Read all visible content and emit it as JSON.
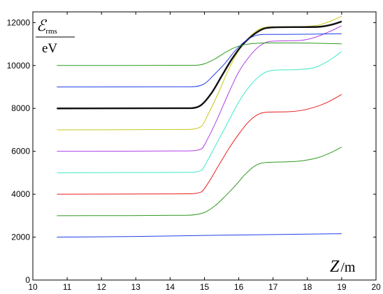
{
  "chart_data": {
    "type": "line",
    "title": "",
    "ylabel_symbol": "ℰ",
    "ylabel_subscript": "rms",
    "ylabel_unit": "eV",
    "xlabel_symbol": "Z",
    "xlabel_unit": "/m",
    "xlim": [
      10,
      20
    ],
    "ylim": [
      0,
      12500
    ],
    "xticks": [
      "10",
      "11",
      "12",
      "13",
      "14",
      "15",
      "16",
      "17",
      "18",
      "19",
      "20"
    ],
    "yticks": [
      "0",
      "2000",
      "4000",
      "6000",
      "8000",
      "10000",
      "12000"
    ],
    "grid": false,
    "series": [
      {
        "color": "#1f3fe8",
        "width": 1,
        "x": [
          10.7,
          13,
          15,
          17,
          19
        ],
        "y": [
          2000,
          2030,
          2080,
          2120,
          2160
        ]
      },
      {
        "color": "#2f9a1f",
        "width": 1,
        "x": [
          10.7,
          14.5,
          15.0,
          15.3,
          15.6,
          15.9,
          16.2,
          16.5,
          16.8,
          17.2,
          17.8,
          18.3,
          18.7,
          19.0
        ],
        "y": [
          3000,
          3020,
          3150,
          3450,
          3900,
          4400,
          4950,
          5350,
          5480,
          5500,
          5550,
          5700,
          5950,
          6200
        ]
      },
      {
        "color": "#e81c1c",
        "width": 1,
        "x": [
          10.7,
          14.5,
          14.9,
          15.1,
          15.4,
          15.7,
          16.0,
          16.3,
          16.6,
          16.9,
          17.4,
          17.8,
          18.2,
          18.6,
          19.0
        ],
        "y": [
          4000,
          4020,
          4100,
          4500,
          5300,
          6100,
          6800,
          7400,
          7750,
          7830,
          7840,
          7900,
          8050,
          8300,
          8650
        ]
      },
      {
        "color": "#3fe8c8",
        "width": 1,
        "x": [
          10.7,
          14.5,
          14.9,
          15.1,
          15.4,
          15.7,
          16.0,
          16.3,
          16.6,
          16.9,
          17.4,
          17.8,
          18.2,
          18.6,
          19.0
        ],
        "y": [
          5000,
          5020,
          5100,
          5600,
          6500,
          7400,
          8300,
          9000,
          9500,
          9750,
          9800,
          9820,
          9900,
          10200,
          10650
        ]
      },
      {
        "color": "#b040e8",
        "width": 1,
        "x": [
          10.7,
          14.5,
          14.9,
          15.1,
          15.4,
          15.7,
          16.0,
          16.3,
          16.6,
          16.9,
          17.4,
          17.8,
          18.2,
          18.6,
          19.0
        ],
        "y": [
          6000,
          6020,
          6100,
          6600,
          7600,
          8700,
          9700,
          10400,
          10900,
          11120,
          11150,
          11170,
          11300,
          11550,
          11850
        ]
      },
      {
        "color": "#c8c81a",
        "width": 1,
        "x": [
          10.7,
          14.5,
          14.9,
          15.1,
          15.4,
          15.7,
          16.0,
          16.3,
          16.6,
          16.9,
          17.5,
          18.2,
          18.8,
          19.0
        ],
        "y": [
          7000,
          7020,
          7150,
          7700,
          8700,
          9800,
          10700,
          11300,
          11700,
          11800,
          11810,
          11850,
          12150,
          12300
        ]
      },
      {
        "color": "#111111",
        "width": 2.4,
        "x": [
          10.7,
          14.6,
          14.9,
          15.2,
          15.5,
          15.8,
          16.1,
          16.4,
          16.7,
          17.0,
          17.6,
          18.3,
          18.7,
          19.0
        ],
        "y": [
          8000,
          8010,
          8150,
          8700,
          9500,
          10300,
          10950,
          11400,
          11700,
          11780,
          11790,
          11800,
          11900,
          12050
        ]
      },
      {
        "color": "#1f3fe8",
        "width": 1,
        "x": [
          10.7,
          14.6,
          15.0,
          15.3,
          15.6,
          15.9,
          16.2,
          16.5,
          16.8,
          17.2,
          18.0,
          19.0
        ],
        "y": [
          9000,
          9010,
          9150,
          9600,
          10100,
          10700,
          11150,
          11400,
          11450,
          11450,
          11460,
          11480
        ]
      },
      {
        "color": "#2f9a1f",
        "width": 1,
        "x": [
          10.7,
          14.7,
          15.0,
          15.3,
          15.6,
          15.9,
          16.2,
          16.5,
          16.8,
          17.5,
          18.2,
          19.0
        ],
        "y": [
          10000,
          10010,
          10080,
          10300,
          10600,
          10850,
          10980,
          11030,
          11050,
          11050,
          11040,
          11010
        ]
      }
    ]
  }
}
